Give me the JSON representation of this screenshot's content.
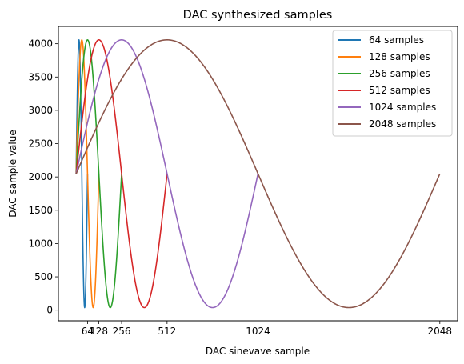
{
  "chart_data": {
    "type": "line",
    "title": "DAC synthesized samples",
    "xlabel": "DAC sinevave sample",
    "ylabel": "DAC sample value",
    "xlim": [
      -100,
      2148
    ],
    "ylim": [
      -160,
      4260
    ],
    "xticks": [
      64,
      128,
      256,
      512,
      1024,
      2048
    ],
    "xtick_labels": [
      "64",
      "128",
      "256",
      "512",
      "1024",
      "2048"
    ],
    "yticks": [
      0,
      500,
      1000,
      1500,
      2000,
      2500,
      3000,
      3500,
      4000
    ],
    "ytick_labels": [
      "0",
      "500",
      "1000",
      "1500",
      "2000",
      "2500",
      "3000",
      "3500",
      "4000"
    ],
    "grid": false,
    "legend_position": "top-right",
    "wave": {
      "offset": 2048,
      "amplitude": 2010
    },
    "series": [
      {
        "name": "64 samples",
        "samples": 64,
        "color": "#1f77b4"
      },
      {
        "name": "128 samples",
        "samples": 128,
        "color": "#ff7f0e"
      },
      {
        "name": "256 samples",
        "samples": 256,
        "color": "#2ca02c"
      },
      {
        "name": "512 samples",
        "samples": 512,
        "color": "#d62728"
      },
      {
        "name": "1024 samples",
        "samples": 1024,
        "color": "#9467bd"
      },
      {
        "name": "2048 samples",
        "samples": 2048,
        "color": "#8c564b"
      }
    ]
  }
}
